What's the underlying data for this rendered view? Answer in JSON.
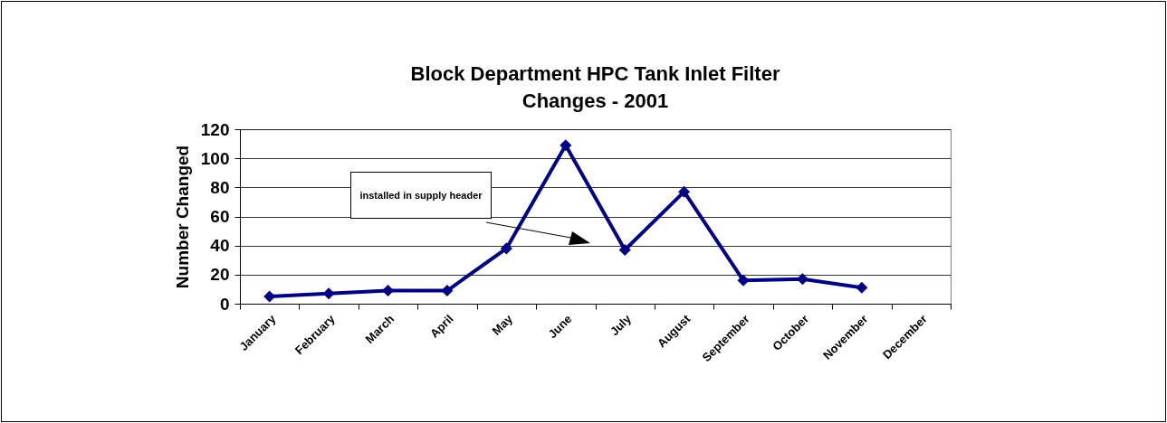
{
  "chart_data": {
    "type": "line",
    "title": "Block Department HPC Tank Inlet Filter Changes - 2001",
    "ylabel": "Number Changed",
    "categories": [
      "January",
      "February",
      "March",
      "April",
      "May",
      "June",
      "July",
      "August",
      "September",
      "October",
      "November",
      "December"
    ],
    "series": [
      {
        "color": "#000080",
        "values": [
          5,
          7,
          9,
          9,
          38,
          109,
          37,
          77,
          16,
          17,
          11,
          null
        ]
      }
    ],
    "ylim": [
      0,
      120
    ],
    "yticks": [
      0,
      20,
      40,
      60,
      80,
      100,
      120
    ],
    "grid": "y",
    "marker": "diamond",
    "line_style": "solid",
    "legend": false,
    "annotations": [
      "installed in supply header"
    ]
  }
}
